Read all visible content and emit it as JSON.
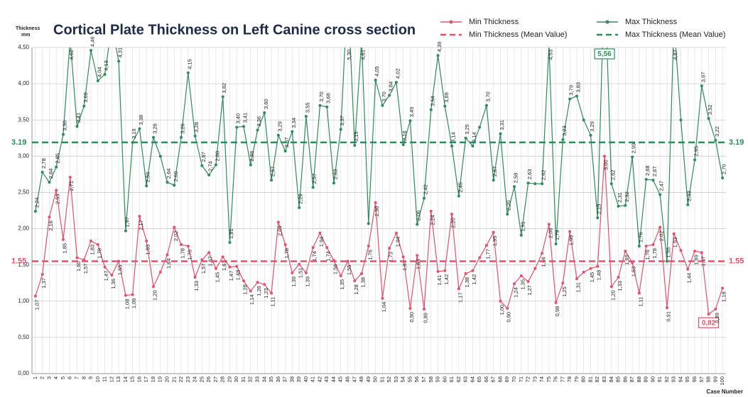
{
  "chart_data": {
    "type": "line",
    "title": "Cortical Plate Thickness on Left Canine cross section",
    "y_label": [
      "Thickness",
      "mm"
    ],
    "x_label": "Case Number",
    "categories": [
      1,
      2,
      3,
      4,
      5,
      6,
      7,
      8,
      9,
      10,
      11,
      12,
      13,
      14,
      15,
      16,
      17,
      18,
      19,
      20,
      21,
      22,
      23,
      24,
      25,
      26,
      27,
      28,
      29,
      30,
      31,
      32,
      33,
      34,
      35,
      36,
      37,
      38,
      39,
      40,
      41,
      42,
      43,
      44,
      45,
      46,
      47,
      48,
      49,
      50,
      51,
      52,
      53,
      54,
      55,
      56,
      57,
      58,
      59,
      60,
      61,
      62,
      63,
      64,
      65,
      66,
      67,
      68,
      69,
      70,
      71,
      72,
      73,
      74,
      75,
      76,
      77,
      78,
      79,
      80,
      81,
      82,
      83,
      84,
      85,
      86,
      87,
      88,
      89,
      90,
      91,
      92,
      93,
      94,
      95,
      96,
      97,
      98,
      99,
      100
    ],
    "ylim": [
      0,
      4.5
    ],
    "yticks": [
      {
        "value": 0,
        "label": "0,00"
      },
      {
        "value": 0.5,
        "label": "0,50"
      },
      {
        "value": 1,
        "label": "1,00"
      },
      {
        "value": 1.5,
        "label": "1,50"
      },
      {
        "value": 2,
        "label": "2,00"
      },
      {
        "value": 2.5,
        "label": "2,50"
      },
      {
        "value": 3,
        "label": "3,00"
      },
      {
        "value": 3.5,
        "label": "3,50"
      },
      {
        "value": 4,
        "label": "4,00"
      },
      {
        "value": 4.5,
        "label": "4,50"
      }
    ],
    "grid": true,
    "legend": "top-right",
    "series": [
      {
        "name": "Min Thickness",
        "color": "#e5506b",
        "values": [
          1.07,
          1.37,
          2.16,
          2.53,
          1.85,
          2.71,
          1.6,
          1.57,
          1.83,
          1.78,
          1.47,
          1.36,
          1.55,
          1.08,
          1.09,
          2.17,
          1.83,
          1.2,
          1.4,
          1.64,
          2.02,
          1.78,
          1.76,
          1.33,
          1.57,
          1.67,
          1.45,
          1.61,
          1.47,
          1.48,
          1.28,
          1.14,
          1.26,
          1.23,
          1.11,
          2.09,
          1.78,
          1.39,
          1.51,
          1.39,
          1.74,
          1.94,
          1.74,
          1.56,
          1.35,
          1.55,
          1.28,
          1.38,
          1.76,
          2.36,
          1.04,
          1.73,
          1.94,
          1.61,
          0.9,
          1.63,
          0.89,
          2.24,
          1.41,
          1.42,
          2.2,
          1.17,
          1.38,
          1.42,
          1.6,
          1.77,
          1.95,
          1.0,
          0.9,
          1.24,
          1.35,
          1.27,
          1.45,
          1.66,
          2.06,
          0.98,
          1.25,
          1.96,
          1.31,
          1.4,
          1.45,
          1.48,
          3.0,
          1.2,
          1.33,
          1.69,
          1.53,
          1.11,
          1.76,
          1.78,
          2.02,
          0.91,
          1.93,
          1.7,
          1.44,
          1.69,
          1.67,
          0.82,
          0.89,
          1.18
        ],
        "value_labels": [
          "1,07",
          "1,37",
          "2,16",
          "2,53",
          "1,85",
          "2,71",
          "1,60",
          "1,57",
          "1,83",
          "1,78",
          "1,47",
          "1,36",
          "1,55",
          "1,08",
          "1,09",
          "2,17",
          "1,83",
          "1,20",
          null,
          "1,64",
          "2,02",
          "1,78",
          "1,76",
          "1,33",
          "1,57",
          "1,67",
          "1,45",
          "1,61",
          "1,47",
          "1,48",
          "1,28",
          "1,14",
          "1,26",
          "1,23",
          "1,11",
          "2,09",
          "1,78",
          "1,39",
          "1,51",
          "1,39",
          "1,74",
          "1,94",
          "1,74",
          "1,56",
          "1,35",
          "1,55",
          "1,28",
          "1,38",
          "1,76",
          "2,36",
          "1,04",
          "1,73",
          "1,94",
          "1,61",
          "0,90",
          "1,63",
          "0,89",
          "2,24",
          "1,41",
          "1,42",
          "2,20",
          "1,17",
          "1,38",
          "1,42",
          null,
          "1,77",
          "1,95",
          "1,00",
          "0,90",
          "1,24",
          "1,35",
          "1,27",
          null,
          "1,66",
          "2,06",
          "0,98",
          "1,25",
          "1,96",
          "1,31",
          null,
          "1,45",
          "1,48",
          "3,00",
          "1,20",
          "1,33",
          "1,69",
          "1,53",
          "1,11",
          "1,76",
          "1,78",
          "2,02",
          "0,91",
          "1,93",
          null,
          "1,44",
          "1,69",
          "1,67",
          "0,82",
          "0,89",
          "1,18"
        ]
      },
      {
        "name": "Max Thickness",
        "color": "#2e8b5a",
        "values": [
          2.24,
          2.78,
          2.64,
          2.85,
          3.3,
          4.62,
          3.41,
          3.69,
          4.46,
          4.04,
          4.13,
          4.8,
          4.31,
          1.97,
          3.19,
          3.38,
          2.59,
          3.26,
          3.0,
          2.64,
          2.6,
          3.26,
          4.15,
          3.28,
          2.87,
          2.74,
          2.88,
          3.82,
          1.81,
          3.4,
          3.41,
          2.88,
          3.36,
          3.6,
          2.67,
          3.29,
          3.07,
          3.34,
          2.29,
          3.55,
          2.57,
          3.7,
          3.68,
          2.63,
          3.37,
          5.3,
          3.15,
          4.61,
          2.07,
          4.05,
          3.7,
          3.84,
          4.02,
          3.16,
          3.49,
          2.06,
          2.42,
          3.64,
          4.39,
          3.69,
          3.14,
          2.45,
          3.25,
          3.14,
          3.4,
          3.7,
          2.67,
          3.31,
          2.2,
          2.58,
          1.91,
          2.63,
          2.62,
          2.62,
          4.53,
          1.79,
          3.23,
          3.79,
          3.83,
          3.5,
          3.29,
          2.15,
          5.56,
          2.62,
          2.31,
          2.32,
          2.99,
          1.76,
          2.68,
          2.67,
          2.47,
          1.55,
          4.87,
          3.5,
          2.33,
          2.95,
          3.97,
          3.52,
          3.22,
          2.7
        ],
        "value_labels": [
          "2,24",
          "2,78",
          "2,64",
          "2,85",
          "3,30",
          "4,62",
          "3,41",
          "3,69",
          "4,46",
          "4,04",
          "4,13",
          null,
          "4,31",
          "1,97",
          "3,19",
          "3,38",
          "2,59",
          "3,26",
          null,
          "2,64",
          "2,60",
          "3,26",
          "4,15",
          "3,28",
          "2,87",
          "2,74",
          "2,88",
          "3,82",
          "1,81",
          "3,40",
          "3,41",
          "2,88",
          "3,36",
          "3,60",
          "2,67",
          "3,29",
          "3,07",
          "3,34",
          "2,29",
          "3,55",
          "2,57",
          "3,70",
          "3,68",
          "2,63",
          "3,37",
          "5,30",
          "3,15",
          "4,61",
          null,
          "4,05",
          "3,70",
          "3,84",
          "4,02",
          "3,16",
          "3,49",
          "2,06",
          "2,42",
          "3,64",
          "4,39",
          "3,69",
          "3,14",
          "2,45",
          "3,25",
          "3,14",
          null,
          "3,70",
          "2,67",
          "3,31",
          "2,20",
          "2,58",
          "1,91",
          "2,63",
          null,
          "2,62",
          "4,53",
          "1,79",
          "3,23",
          "3,79",
          "3,83",
          null,
          "3,29",
          "2,15",
          "5,56",
          "2,62",
          "2,31",
          "2,32",
          "2,99",
          "1,76",
          "2,68",
          "2,67",
          "2,47",
          "1,55",
          "4,87",
          null,
          "2,33",
          "2,95",
          "3,97",
          "3,52",
          "3,22",
          "2,70"
        ]
      }
    ],
    "mean_lines": [
      {
        "name": "Min Thickness (Mean Value)",
        "value": 1.55,
        "color": "#e5506b"
      },
      {
        "name": "Max Thickness (Mean Value)",
        "value": 3.19,
        "color": "#2e8b5a"
      }
    ]
  }
}
